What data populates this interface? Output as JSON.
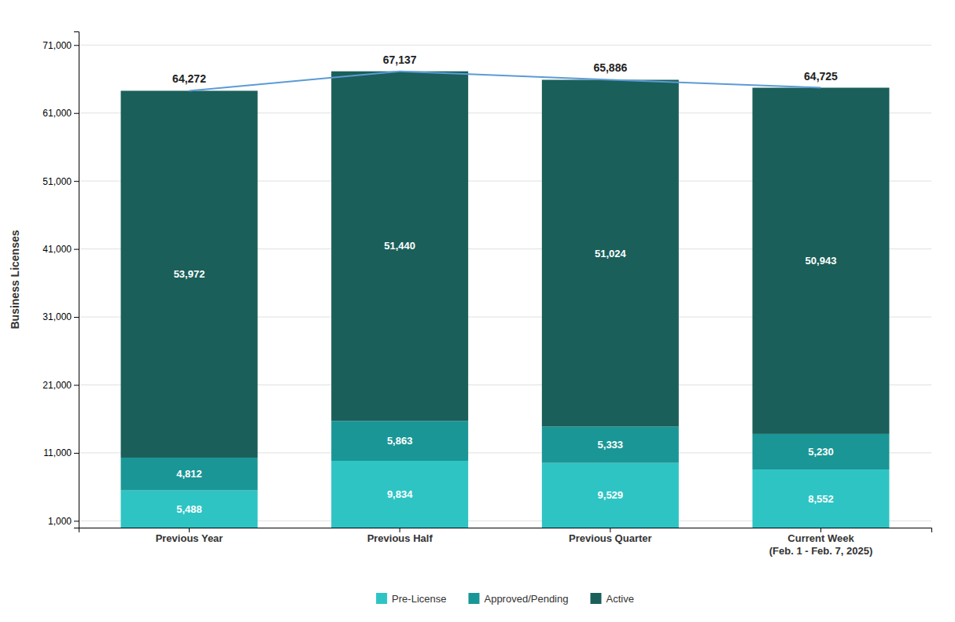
{
  "chart_data": {
    "type": "bar",
    "ylabel": "Business Licenses",
    "categories": [
      "Previous Year",
      "Previous Half",
      "Previous Quarter",
      "Current Week\n(Feb. 1 - Feb. 7, 2025)"
    ],
    "stacked": true,
    "data_labels": true,
    "grid": true,
    "legend": "bottom",
    "ylim": [
      0,
      73000
    ],
    "yticks": [
      {
        "value": 1000,
        "label": "1,000"
      },
      {
        "value": 11000,
        "label": "11,000"
      },
      {
        "value": 21000,
        "label": "21,000"
      },
      {
        "value": 31000,
        "label": "31,000"
      },
      {
        "value": 41000,
        "label": "41,000"
      },
      {
        "value": 51000,
        "label": "51,000"
      },
      {
        "value": 61000,
        "label": "61,000"
      },
      {
        "value": 71000,
        "label": "71,000"
      }
    ],
    "series": [
      {
        "name": "Pre-License",
        "type": "bar",
        "color": "#2ec4c4",
        "values": [
          5488,
          9834,
          9529,
          8552
        ],
        "value_labels": [
          "5,488",
          "9,834",
          "9,529",
          "8,552"
        ]
      },
      {
        "name": "Approved/Pending",
        "type": "bar",
        "color": "#1a9696",
        "values": [
          4812,
          5863,
          5333,
          5230
        ],
        "value_labels": [
          "4,812",
          "5,863",
          "5,333",
          "5,230"
        ]
      },
      {
        "name": "Active",
        "type": "bar",
        "color": "#1a5f5a",
        "values": [
          53972,
          51440,
          51024,
          50943
        ],
        "value_labels": [
          "53,972",
          "51,440",
          "51,024",
          "50,943"
        ]
      },
      {
        "type": "line",
        "color": "#5b9bd5",
        "values": [
          64272,
          67137,
          65886,
          64725
        ],
        "value_labels": [
          "64,272",
          "67,137",
          "65,886",
          "64,725"
        ]
      }
    ]
  }
}
